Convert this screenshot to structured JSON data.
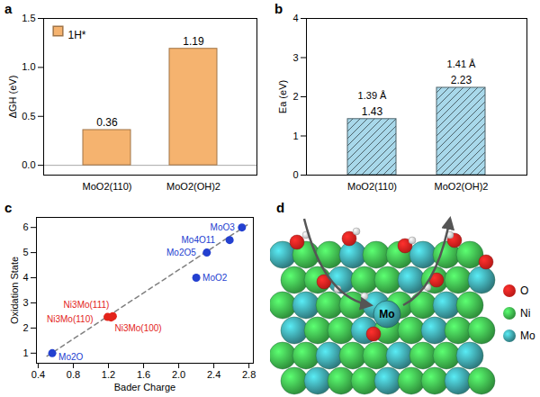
{
  "chart_data": [
    {
      "panel": "a",
      "type": "bar",
      "categories": [
        "MoO2(110)",
        "MoO2(OH)2"
      ],
      "series": [
        {
          "name": "1H*",
          "color": "#f5b36f",
          "values": [
            0.36,
            1.19
          ]
        }
      ],
      "y_label": "ΔGH (eV)",
      "ylim": [
        -0.1,
        1.5
      ],
      "yticks": [
        {
          "value": 0,
          "label": "0.0"
        },
        {
          "value": 0.5,
          "label": "0.5"
        },
        {
          "value": 1,
          "label": "1.0"
        },
        {
          "value": 1.5,
          "label": "1.5"
        }
      ],
      "legend": "upper left",
      "data_labels": true
    },
    {
      "panel": "b",
      "type": "bar",
      "categories": [
        "MoO2(110)",
        "MoO2(OH)2"
      ],
      "values": [
        1.43,
        2.23
      ],
      "color": "#a8d8ea",
      "y_label": "Ea (eV)",
      "ylim": [
        0,
        4
      ],
      "yticks": [
        0,
        1,
        2,
        3,
        4
      ],
      "data_labels": true,
      "annotations": [
        {
          "category": "MoO2(110)",
          "text": "1.39 Å"
        },
        {
          "category": "MoO2(OH)2",
          "text": "1.41 Å"
        }
      ]
    },
    {
      "panel": "c",
      "type": "scatter",
      "x_label": "Bader Charge",
      "y_label": "Oxidation State",
      "xlim": [
        0.38,
        2.85
      ],
      "xticks": [
        0.4,
        0.8,
        1.2,
        1.6,
        {
          "value": 2,
          "label": "2.0"
        },
        2.4,
        2.8
      ],
      "ylim": [
        0.6,
        6.4
      ],
      "yticks": [
        1,
        2,
        3,
        4,
        5,
        6
      ],
      "series": [
        {
          "color": "#2340d0",
          "marker": "circle",
          "x": [
            0.56,
            2.2,
            2.32,
            2.58,
            2.72
          ],
          "values": [
            1,
            4,
            5,
            5.5,
            6
          ],
          "labels": [
            "Mo2O",
            "MoO2",
            "Mo2O5",
            "Mo4O11",
            "MoO3"
          ]
        },
        {
          "color": "#e3241b",
          "marker": "circle",
          "x": [
            1.25,
            1.19,
            1.23
          ],
          "values": [
            2.47,
            2.44,
            2.42
          ],
          "labels": [
            "Ni3Mo(111)",
            "Ni3Mo(110)",
            "Ni3Mo(100)"
          ]
        },
        {
          "type": "line",
          "line_style": "dashed",
          "color": "#7f7f7f",
          "x": [
            0.5,
            2.78
          ],
          "values": [
            0.88,
            6.1
          ]
        }
      ]
    }
  ],
  "diagram": {
    "panel": "d",
    "annotation": "Mo",
    "legend": [
      {
        "label": "O",
        "color": "#e8201e"
      },
      {
        "label": "Ni",
        "color": "#3cb54a"
      },
      {
        "label": "Mo",
        "color": "#3a9aa0"
      }
    ]
  }
}
